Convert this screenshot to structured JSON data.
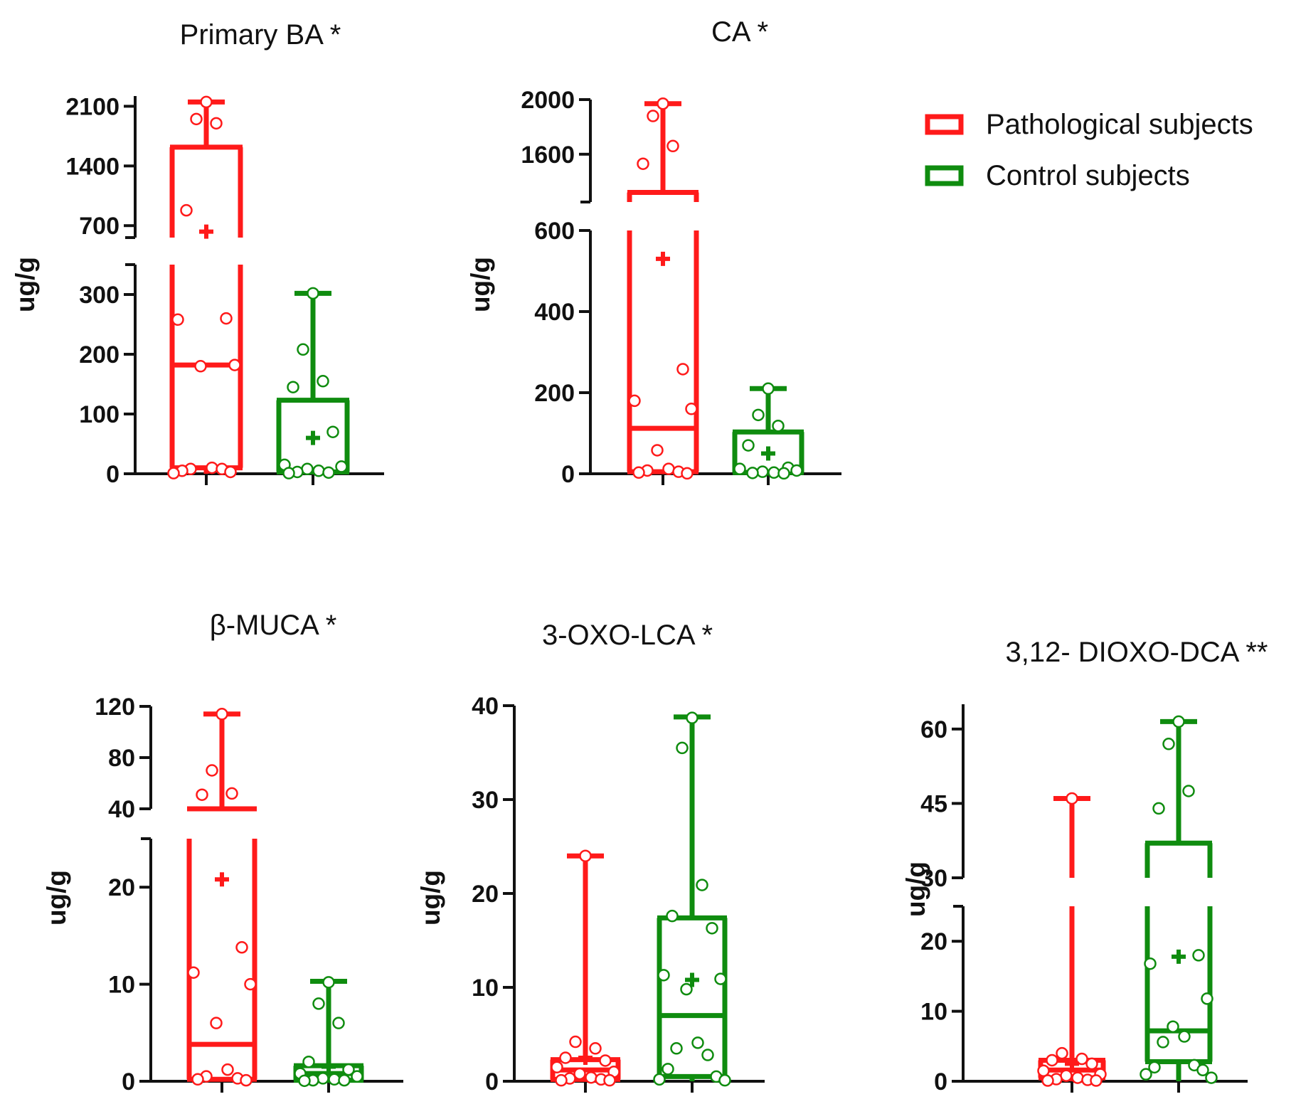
{
  "legend": {
    "items": [
      {
        "label": "Pathological subjects",
        "color": "#ff1a1a"
      },
      {
        "label": "Control subjects",
        "color": "#0f8c0f"
      }
    ]
  },
  "chart_data": [
    {
      "type": "box",
      "title": "Primary BA *",
      "ylabel": "ug/g",
      "y_axis_break": {
        "lower_range": [
          0,
          350
        ],
        "upper_range": [
          560,
          2220
        ]
      },
      "yticks_lower": [
        0,
        100,
        200,
        300
      ],
      "yticks_upper": [
        700,
        1400,
        2100
      ],
      "series": [
        {
          "name": "Pathological subjects",
          "color": "#ff1a1a",
          "min": 0,
          "q1": 10,
          "median": 182,
          "q3": 1620,
          "max": 2150,
          "mean": 630,
          "points": [
            2150,
            1950,
            1900,
            880,
            260,
            258,
            182,
            180,
            10,
            8,
            8,
            5,
            3,
            1
          ]
        },
        {
          "name": "Control subjects",
          "color": "#0f8c0f",
          "min": 0,
          "q1": 3,
          "median": 3,
          "q3": 123,
          "max": 302,
          "mean": 60,
          "points": [
            302,
            208,
            155,
            145,
            70,
            15,
            12,
            8,
            5,
            3,
            2,
            1
          ]
        }
      ]
    },
    {
      "type": "box",
      "title": "CA *",
      "ylabel": "ug/g",
      "y_axis_break": {
        "lower_range": [
          0,
          600
        ],
        "upper_range": [
          1250,
          2000
        ]
      },
      "yticks_lower": [
        0,
        200,
        400,
        600
      ],
      "yticks_upper": [
        1600,
        2000
      ],
      "series": [
        {
          "name": "Pathological subjects",
          "color": "#ff1a1a",
          "min": 0,
          "q1": 5,
          "median": 112,
          "q3": 1320,
          "max": 1970,
          "mean": 530,
          "points": [
            1970,
            1880,
            1660,
            1530,
            258,
            180,
            160,
            58,
            12,
            8,
            5,
            3,
            1
          ]
        },
        {
          "name": "Control subjects",
          "color": "#0f8c0f",
          "min": 0,
          "q1": 3,
          "median": 3,
          "q3": 103,
          "max": 210,
          "mean": 50,
          "points": [
            210,
            145,
            118,
            70,
            15,
            12,
            8,
            5,
            3,
            2,
            1
          ]
        }
      ]
    },
    {
      "type": "box",
      "title": "β-MUCA *",
      "ylabel": "ug/g",
      "y_axis_break": {
        "lower_range": [
          0,
          25
        ],
        "upper_range": [
          40,
          120
        ]
      },
      "yticks_lower": [
        0,
        10,
        20
      ],
      "yticks_upper": [
        40,
        80,
        120
      ],
      "series": [
        {
          "name": "Pathological subjects",
          "color": "#ff1a1a",
          "min": 0,
          "q1": 0.2,
          "median": 3.8,
          "q3": 40,
          "max": 114,
          "mean": 20.8,
          "points": [
            114,
            70,
            52,
            51,
            13.8,
            11.2,
            10,
            6,
            1.2,
            0.5,
            0.3,
            0.2,
            0.1
          ]
        },
        {
          "name": "Control subjects",
          "color": "#0f8c0f",
          "min": 0,
          "q1": 0.1,
          "median": 0.8,
          "q3": 1.6,
          "max": 10.3,
          "mean": 1.5,
          "points": [
            10.2,
            8,
            6,
            2,
            1.2,
            0.8,
            0.5,
            0.3,
            0.2,
            0.1,
            0.1,
            0.05
          ]
        }
      ]
    },
    {
      "type": "box",
      "title": "3-OXO-LCA *",
      "ylabel": "ug/g",
      "ylim": [
        0,
        40
      ],
      "yticks": [
        0,
        10,
        20,
        30,
        40
      ],
      "series": [
        {
          "name": "Pathological subjects",
          "color": "#ff1a1a",
          "min": 0,
          "q1": 0.2,
          "median": 1.2,
          "q3": 2.3,
          "max": 24,
          "mean": 2.5,
          "points": [
            24,
            4.2,
            3.5,
            2.5,
            2.2,
            1.5,
            1,
            0.8,
            0.4,
            0.3,
            0.2,
            0.1,
            0.1
          ]
        },
        {
          "name": "Control subjects",
          "color": "#0f8c0f",
          "min": 0,
          "q1": 0.5,
          "median": 7,
          "q3": 17.4,
          "max": 38.8,
          "mean": 10.8,
          "points": [
            38.7,
            35.5,
            20.9,
            17.6,
            16.3,
            11.3,
            10.9,
            9.8,
            4.1,
            3.5,
            2.8,
            1.3,
            0.5,
            0.2,
            0.1
          ]
        }
      ]
    },
    {
      "type": "box",
      "title": "3,12- DIOXO-DCA **",
      "ylabel": "ug/g",
      "y_axis_break": {
        "lower_range": [
          0,
          25
        ],
        "upper_range": [
          30,
          65
        ]
      },
      "yticks_lower": [
        0,
        10,
        20
      ],
      "yticks_upper": [
        30,
        45,
        60
      ],
      "series": [
        {
          "name": "Pathological subjects",
          "color": "#ff1a1a",
          "min": 0,
          "q1": 0.5,
          "median": 1.6,
          "q3": 3,
          "max": 46,
          "mean": 2.5,
          "points": [
            46,
            4,
            3.2,
            3,
            2.5,
            1.5,
            1,
            0.8,
            0.5,
            0.3,
            0.2,
            0.1,
            0.1
          ]
        },
        {
          "name": "Control subjects",
          "color": "#0f8c0f",
          "min": 0,
          "q1": 2.8,
          "median": 7.2,
          "q3": 37,
          "max": 61.5,
          "mean": 17.8,
          "points": [
            61.5,
            57,
            47.5,
            44,
            18,
            16.8,
            11.8,
            7.8,
            6.4,
            5.6,
            2.3,
            2,
            1.6,
            1,
            0.5
          ]
        }
      ]
    }
  ]
}
